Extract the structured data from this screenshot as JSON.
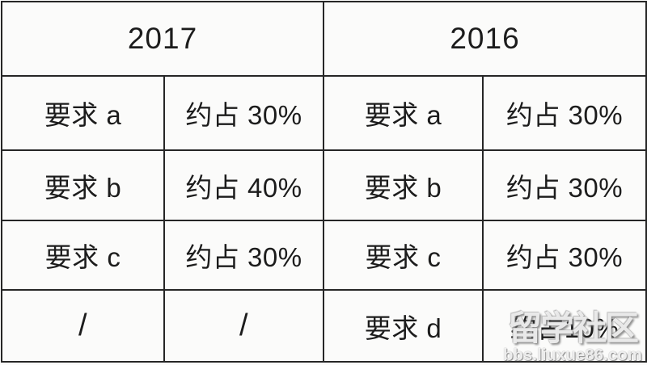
{
  "colors": {
    "accent_red": "#d4281e",
    "text_black": "#1c1c1c",
    "grid_border": "#262626",
    "background": "#fbfbfa"
  },
  "table": {
    "year_headers": [
      {
        "label": "2017"
      },
      {
        "label": "2016"
      }
    ],
    "rows": [
      [
        {
          "text": "要求 a",
          "red": false
        },
        {
          "text": "约占 30%",
          "red": false
        },
        {
          "text": "要求 a",
          "red": false
        },
        {
          "text": "约占 30%",
          "red": false
        }
      ],
      [
        {
          "text": "要求 b",
          "red": false
        },
        {
          "text": "约占 40%",
          "red": true
        },
        {
          "text": "要求 b",
          "red": false
        },
        {
          "text": "约占 30%",
          "red": true
        }
      ],
      [
        {
          "text": "要求 c",
          "red": false
        },
        {
          "text": "约占 30%",
          "red": false
        },
        {
          "text": "要求 c",
          "red": false
        },
        {
          "text": "约占 30%",
          "red": false
        }
      ],
      [
        {
          "text": "/",
          "red": false
        },
        {
          "text": "/",
          "red": false
        },
        {
          "text": "要求 d",
          "red": true
        },
        {
          "text": "约占10%",
          "red": true
        }
      ]
    ]
  },
  "watermark": {
    "title": "留学社区",
    "url": "bbs.liuxue86.com"
  }
}
